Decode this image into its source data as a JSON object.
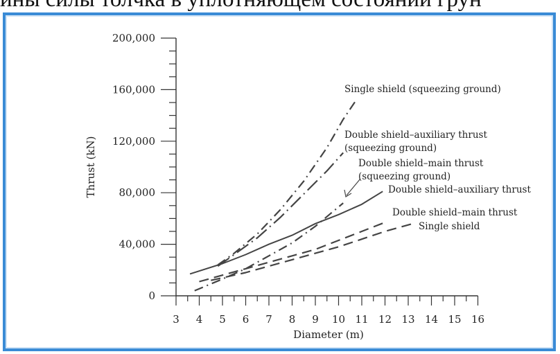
{
  "header_text": "ины силы толчка в уплотняющем состоянии грун",
  "colors": {
    "frame_border": "#3a8bd6",
    "line": "#333333"
  },
  "chart_data": {
    "type": "line",
    "xlabel": "Diameter (m)",
    "ylabel": "Thrust (kN)",
    "xlim": [
      3,
      16
    ],
    "ylim": [
      0,
      200000
    ],
    "x_ticks": [
      "3",
      "4",
      "5",
      "6",
      "7",
      "8",
      "9",
      "10",
      "11",
      "12",
      "13",
      "14",
      "15",
      "16"
    ],
    "y_ticks": [
      {
        "value": 0,
        "label": "0"
      },
      {
        "value": 40000,
        "label": "40,000"
      },
      {
        "value": 80000,
        "label": "80,000"
      },
      {
        "value": 120000,
        "label": "120,000"
      },
      {
        "value": 160000,
        "label": "160,000"
      },
      {
        "value": 200000,
        "label": "200,000"
      }
    ],
    "grid": false,
    "series": [
      {
        "name": "Single shield (squeezing ground)",
        "style": "dash-dot",
        "x": [
          4.8,
          5.5,
          6.5,
          7.5,
          8.5,
          9.5,
          10.2,
          10.8
        ],
        "y": [
          24000,
          33000,
          48000,
          67000,
          89000,
          115000,
          137000,
          153000
        ]
      },
      {
        "name": "Double shield–auxiliary thrust (squeezing ground)",
        "style": "long-dash-dot",
        "x": [
          4.8,
          5.5,
          6.5,
          7.5,
          8.5,
          9.5,
          10.2
        ],
        "y": [
          23000,
          32000,
          45000,
          61000,
          79000,
          97000,
          111000
        ]
      },
      {
        "name": "Double shield–main thrust (squeezing ground)",
        "style": "dash-dot",
        "x": [
          3.8,
          5,
          6,
          7,
          8,
          9,
          10.2
        ],
        "y": [
          4000,
          13000,
          21000,
          31000,
          41000,
          54000,
          72000
        ]
      },
      {
        "name": "Double shield–auxiliary thrust",
        "style": "solid",
        "x": [
          3.6,
          5,
          6,
          7,
          8,
          9,
          10,
          11,
          11.9
        ],
        "y": [
          17000,
          25000,
          32000,
          40000,
          47000,
          56000,
          63000,
          71000,
          81000
        ]
      },
      {
        "name": "Double shield–main thrust",
        "style": "dashed",
        "x": [
          4,
          5,
          6,
          7,
          8,
          9,
          10,
          11,
          12
        ],
        "y": [
          11000,
          16000,
          21000,
          26000,
          31000,
          36000,
          43000,
          50000,
          57000
        ]
      },
      {
        "name": "Single shield",
        "style": "dashed",
        "x": [
          4.5,
          6,
          7,
          8,
          9,
          10,
          11,
          12,
          13.2
        ],
        "y": [
          12000,
          18000,
          23000,
          28000,
          33000,
          38000,
          44000,
          50000,
          56000
        ]
      }
    ],
    "annotations": [
      {
        "text": "Single shield (squeezing ground)",
        "series": 0
      },
      {
        "text": "Double shield–auxiliary thrust",
        "series": 1
      },
      {
        "text": "(squeezing ground)",
        "series": 1
      },
      {
        "text": "Double shield–main thrust",
        "series": 2
      },
      {
        "text": "(squeezing ground)",
        "series": 2
      },
      {
        "text": "Double shield–auxiliary thrust",
        "series": 3
      },
      {
        "text": "Double shield–main thrust",
        "series": 4
      },
      {
        "text": "Single shield",
        "series": 5
      }
    ]
  }
}
